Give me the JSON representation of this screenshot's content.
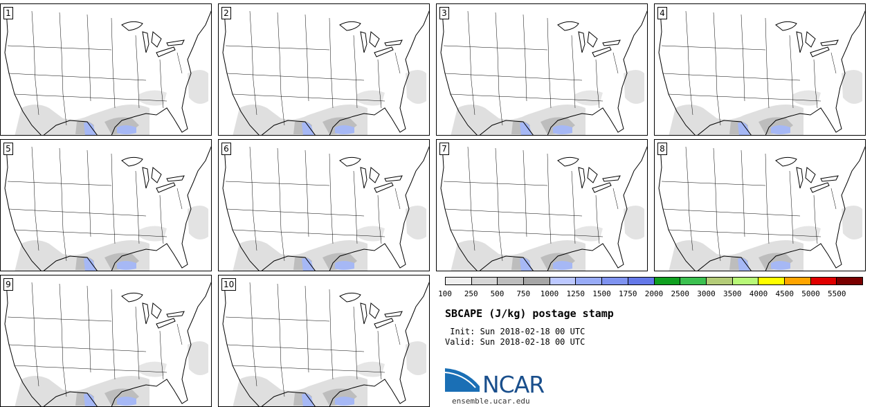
{
  "panels": [
    {
      "label": "1"
    },
    {
      "label": "2"
    },
    {
      "label": "3"
    },
    {
      "label": "4"
    },
    {
      "label": "5"
    },
    {
      "label": "6"
    },
    {
      "label": "7"
    },
    {
      "label": "8"
    },
    {
      "label": "9"
    },
    {
      "label": "10"
    }
  ],
  "legend": {
    "ticks": [
      "100",
      "250",
      "500",
      "750",
      "1000",
      "1250",
      "1500",
      "1750",
      "2000",
      "2500",
      "3000",
      "3500",
      "4000",
      "4500",
      "5000",
      "5500"
    ],
    "colors": [
      "#eeeeee",
      "#d6d6d6",
      "#bdbdbd",
      "#a6a6a6",
      "#bcc8ff",
      "#98abf7",
      "#7f93f0",
      "#6478e8",
      "#10a020",
      "#3cc050",
      "#b4cc78",
      "#b8f878",
      "#ffff00",
      "#ffa500",
      "#e00000",
      "#7a0000"
    ]
  },
  "title": "SBCAPE (J/kg) postage stamp",
  "init_text": " Init: Sun 2018-02-18 00 UTC",
  "valid_text": "Valid: Sun 2018-02-18 00 UTC",
  "logo": {
    "name": "NCAR",
    "url": "ensemble.ucar.edu",
    "colors": {
      "blue": "#1a6fb5",
      "text": "#1a4f8c"
    }
  }
}
